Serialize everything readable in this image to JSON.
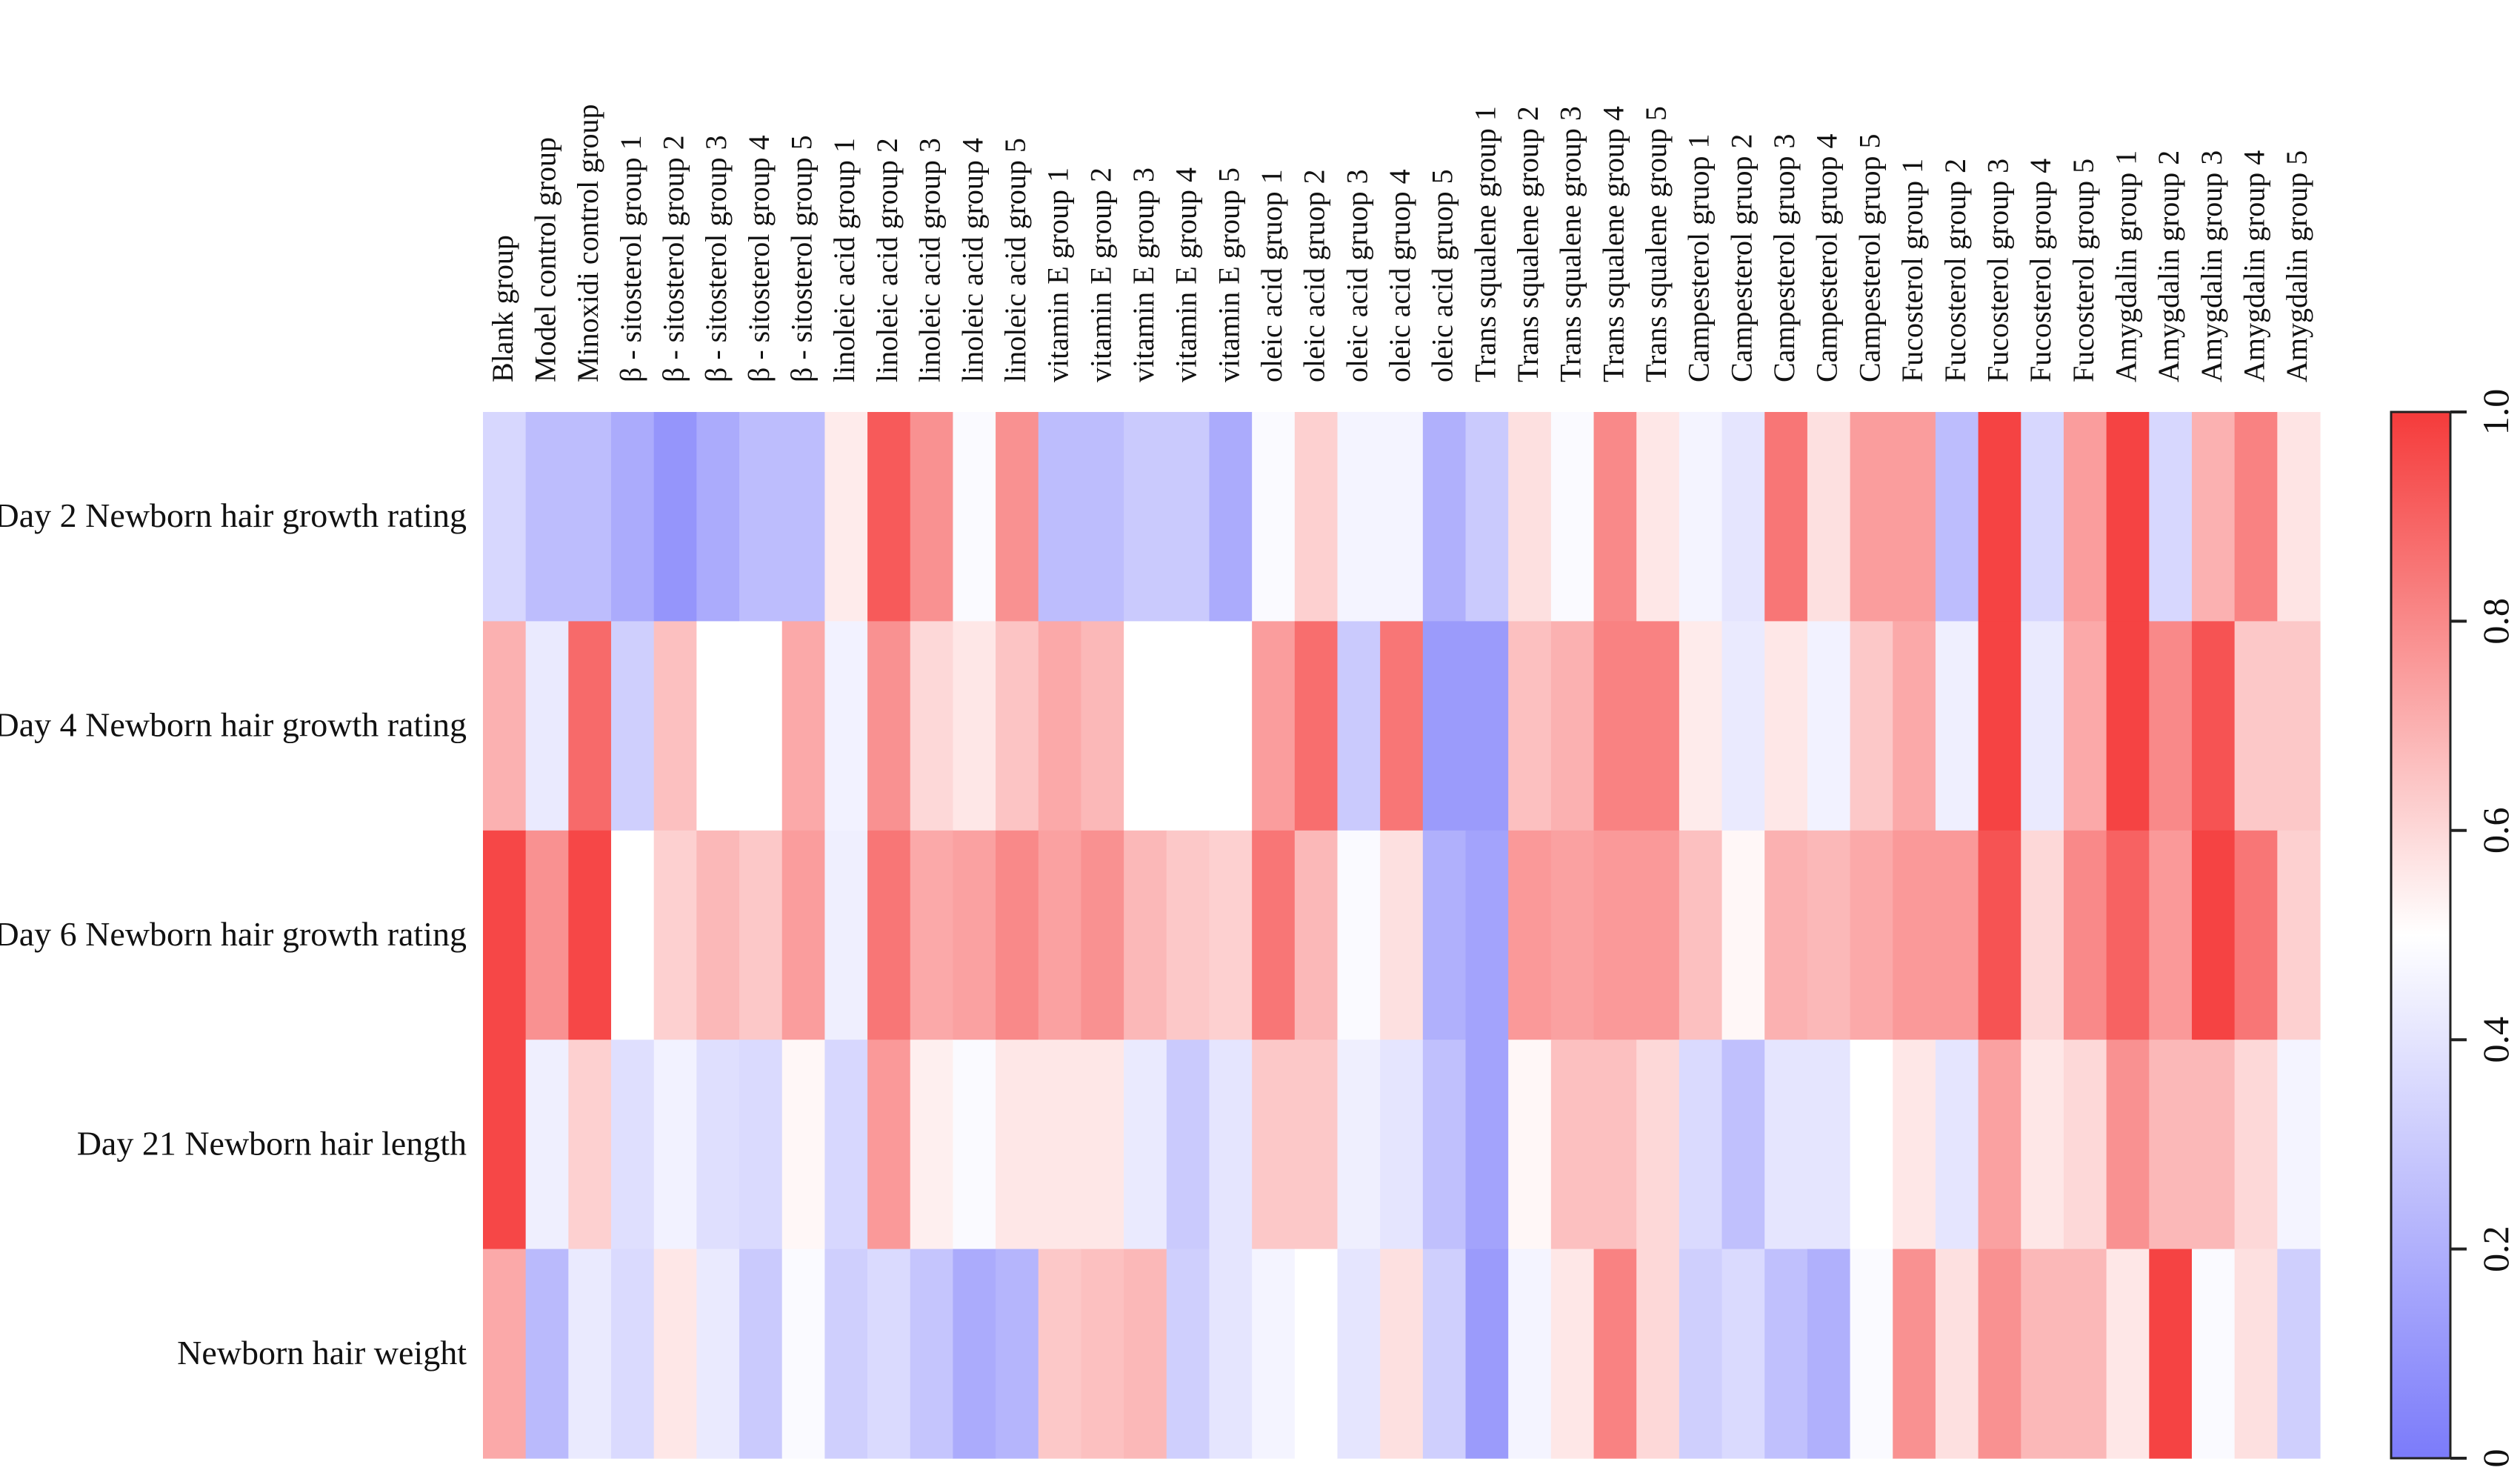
{
  "chart_data": {
    "type": "heatmap",
    "columns": [
      "Blank group",
      "Model control group",
      "Minoxidi control group",
      "β - sitosterol group 1",
      "β - sitosterol group 2",
      "β - sitosterol group 3",
      "β - sitosterol group 4",
      "β - sitosterol group 5",
      "linoleic acid group 1",
      "linoleic acid group 2",
      "linoleic acid group 3",
      "linoleic acid group 4",
      "linoleic acid group 5",
      "vitamin E group 1",
      "vitamin E group 2",
      "vitamin E group 3",
      "vitamin E group 4",
      "vitamin E group 5",
      "oleic acid gruop 1",
      "oleic acid gruop 2",
      "oleic acid gruop 3",
      "oleic acid gruop 4",
      "oleic acid gruop 5",
      "Trans squalene group 1",
      "Trans squalene group 2",
      "Trans squalene group 3",
      "Trans squalene group 4",
      "Trans squalene group 5",
      "Campesterol gruop 1",
      "Campesterol gruop 2",
      "Campesterol gruop 3",
      "Campesterol gruop 4",
      "Campesterol gruop 5",
      "Fucosterol group 1",
      "Fucosterol group 2",
      "Fucosterol group 3",
      "Fucosterol group 4",
      "Fucosterol group 5",
      "Amygdalin group 1",
      "Amygdalin group 2",
      "Amygdalin group 3",
      "Amygdalin group 4",
      "Amygdalin group 5"
    ],
    "rows": [
      "Day 2 Newborn hair growth rating",
      "Day 4 Newborn hair growth rating",
      "Day 6 Newborn hair growth rating",
      "Day 21 Newborn hair length",
      "Newborn hair weight"
    ],
    "values": [
      [
        0.35,
        0.25,
        0.25,
        0.18,
        0.1,
        0.18,
        0.25,
        0.25,
        0.55,
        0.92,
        0.78,
        0.48,
        0.78,
        0.25,
        0.25,
        0.3,
        0.3,
        0.18,
        0.48,
        0.62,
        0.46,
        0.46,
        0.2,
        0.3,
        0.58,
        0.48,
        0.8,
        0.56,
        0.46,
        0.4,
        0.85,
        0.58,
        0.75,
        0.75,
        0.25,
        0.98,
        0.35,
        0.75,
        0.98,
        0.35,
        0.7,
        0.82,
        0.57
      ],
      [
        0.7,
        0.42,
        0.88,
        0.32,
        0.66,
        0.5,
        0.5,
        0.72,
        0.45,
        0.78,
        0.6,
        0.56,
        0.65,
        0.72,
        0.68,
        0.5,
        0.5,
        0.5,
        0.75,
        0.87,
        0.3,
        0.85,
        0.12,
        0.12,
        0.66,
        0.7,
        0.82,
        0.82,
        0.55,
        0.42,
        0.56,
        0.45,
        0.64,
        0.72,
        0.44,
        0.98,
        0.42,
        0.72,
        0.98,
        0.8,
        0.94,
        0.64,
        0.64
      ],
      [
        0.97,
        0.78,
        0.97,
        0.5,
        0.62,
        0.68,
        0.64,
        0.75,
        0.44,
        0.85,
        0.72,
        0.74,
        0.8,
        0.74,
        0.78,
        0.68,
        0.64,
        0.62,
        0.85,
        0.68,
        0.48,
        0.58,
        0.2,
        0.15,
        0.76,
        0.74,
        0.76,
        0.76,
        0.66,
        0.52,
        0.7,
        0.68,
        0.72,
        0.76,
        0.76,
        0.94,
        0.6,
        0.8,
        0.9,
        0.76,
        0.98,
        0.85,
        0.62
      ],
      [
        0.97,
        0.44,
        0.62,
        0.38,
        0.45,
        0.38,
        0.36,
        0.52,
        0.35,
        0.76,
        0.54,
        0.48,
        0.56,
        0.56,
        0.56,
        0.42,
        0.3,
        0.4,
        0.64,
        0.64,
        0.44,
        0.4,
        0.26,
        0.15,
        0.52,
        0.66,
        0.66,
        0.6,
        0.36,
        0.26,
        0.4,
        0.4,
        0.5,
        0.56,
        0.4,
        0.74,
        0.56,
        0.6,
        0.78,
        0.68,
        0.68,
        0.6,
        0.46
      ],
      [
        0.72,
        0.24,
        0.42,
        0.36,
        0.56,
        0.42,
        0.3,
        0.48,
        0.32,
        0.36,
        0.28,
        0.18,
        0.22,
        0.64,
        0.66,
        0.68,
        0.32,
        0.4,
        0.46,
        0.5,
        0.4,
        0.58,
        0.32,
        0.12,
        0.46,
        0.56,
        0.82,
        0.6,
        0.32,
        0.36,
        0.26,
        0.2,
        0.48,
        0.78,
        0.58,
        0.78,
        0.68,
        0.68,
        0.56,
        0.98,
        0.48,
        0.58,
        0.32
      ]
    ],
    "colorbar": {
      "min": 0,
      "max": 1,
      "ticks": [
        "0",
        "0.2",
        "0.4",
        "0.6",
        "0.8",
        "1.0"
      ],
      "low_color": "#7b7bfa",
      "mid_color": "#ffffff",
      "high_color": "#f53b3b"
    }
  }
}
